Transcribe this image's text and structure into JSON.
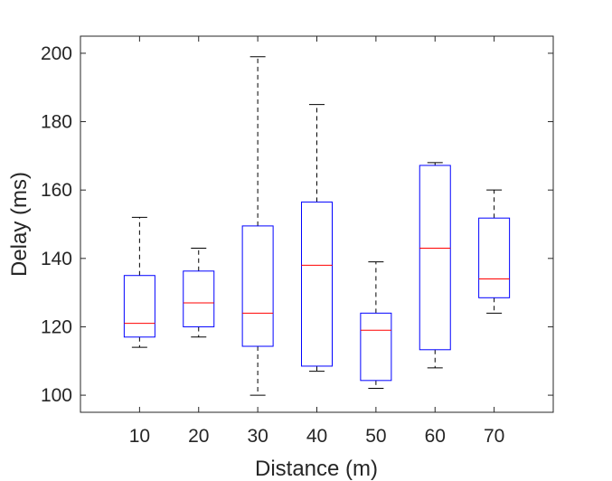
{
  "chart_data": {
    "type": "boxplot",
    "title": "",
    "xlabel": "Distance (m)",
    "ylabel": "Delay (ms)",
    "ylim": [
      95,
      205
    ],
    "yticks": [
      100,
      120,
      140,
      160,
      180,
      200
    ],
    "grid": false,
    "legend": "none",
    "categories": [
      "10",
      "20",
      "30",
      "40",
      "50",
      "60",
      "70"
    ],
    "boxes": [
      {
        "category": "10",
        "whisker_low": 114,
        "q1": 117,
        "median": 121,
        "q3": 135,
        "whisker_high": 152
      },
      {
        "category": "20",
        "whisker_low": 117,
        "q1": 120,
        "median": 127,
        "q3": 136.3,
        "whisker_high": 143
      },
      {
        "category": "30",
        "whisker_low": 100,
        "q1": 114.3,
        "median": 124,
        "q3": 149.5,
        "whisker_high": 199
      },
      {
        "category": "40",
        "whisker_low": 107,
        "q1": 108.5,
        "median": 138,
        "q3": 156.5,
        "whisker_high": 185
      },
      {
        "category": "50",
        "whisker_low": 102,
        "q1": 104.3,
        "median": 119,
        "q3": 124,
        "whisker_high": 139
      },
      {
        "category": "60",
        "whisker_low": 108,
        "q1": 113.3,
        "median": 143,
        "q3": 167.2,
        "whisker_high": 168
      },
      {
        "category": "70",
        "whisker_low": 124,
        "q1": 128.5,
        "median": 134,
        "q3": 151.8,
        "whisker_high": 160
      }
    ],
    "colors": {
      "box": "#0000ff",
      "median": "#ff0000",
      "whisker": "#000000",
      "axis": "#262626"
    }
  }
}
